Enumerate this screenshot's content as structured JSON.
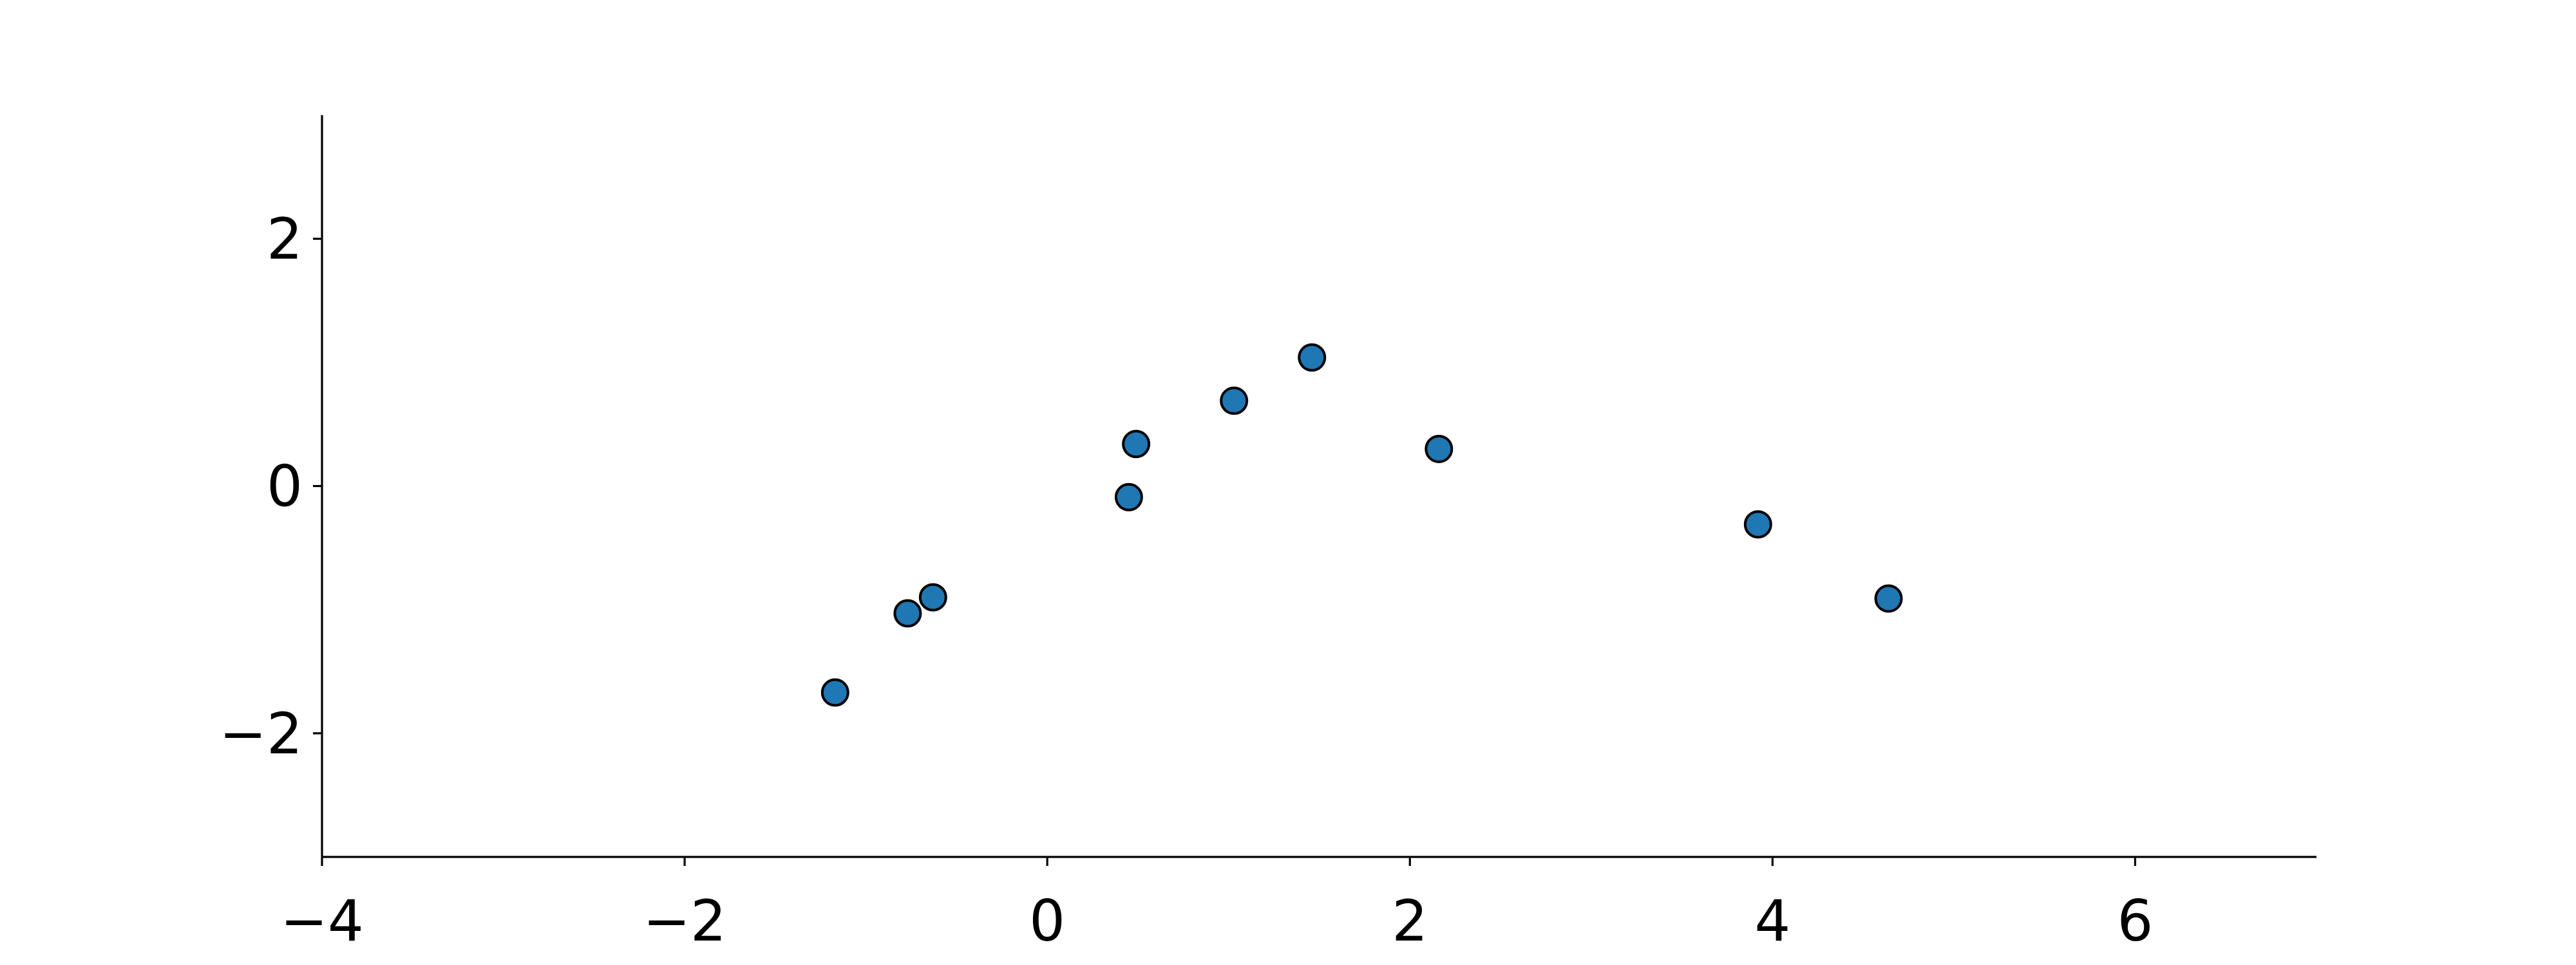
{
  "chart_data": {
    "type": "scatter",
    "title": "",
    "xlabel": "",
    "ylabel": "",
    "xlim": [
      -4,
      7
    ],
    "ylim": [
      -3,
      3
    ],
    "xticks": [
      -4,
      -2,
      0,
      2,
      4,
      6
    ],
    "yticks": [
      -2,
      0,
      2
    ],
    "xtick_labels": [
      "−4",
      "−2",
      "0",
      "2",
      "4",
      "6"
    ],
    "ytick_labels": [
      "−2",
      "0",
      "2"
    ],
    "grid": false,
    "spines": [
      "left",
      "bottom"
    ],
    "marker_color": "#1f77b4",
    "marker_edge_color": "#000000",
    "points": [
      {
        "x": -1.17,
        "y": -1.67
      },
      {
        "x": -0.77,
        "y": -1.03
      },
      {
        "x": -0.63,
        "y": -0.9
      },
      {
        "x": 0.45,
        "y": -0.09
      },
      {
        "x": 0.49,
        "y": 0.34
      },
      {
        "x": 1.03,
        "y": 0.69
      },
      {
        "x": 1.46,
        "y": 1.04
      },
      {
        "x": 2.16,
        "y": 0.3
      },
      {
        "x": 3.92,
        "y": -0.31
      },
      {
        "x": 4.64,
        "y": -0.91
      }
    ]
  }
}
